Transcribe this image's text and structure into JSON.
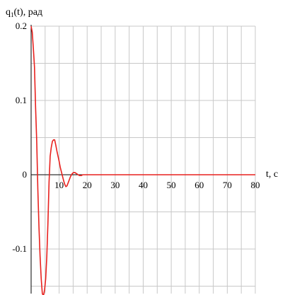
{
  "chart_data": {
    "type": "line",
    "ylabel": "q1(t), рад",
    "ylabel_main": "q",
    "ylabel_sub": "1",
    "ylabel_rest": "(t), рад",
    "xlabel": "t, c",
    "xlim": [
      0,
      80
    ],
    "ylim": [
      -0.16,
      0.2
    ],
    "grid": true,
    "x_ticks": [
      10,
      20,
      30,
      40,
      50,
      60,
      70,
      80
    ],
    "x_tick_labels": [
      "10",
      "20",
      "30",
      "40",
      "50",
      "60",
      "70",
      "80"
    ],
    "y_ticks": [
      0.2,
      0.1,
      0,
      -0.1
    ],
    "y_tick_labels": [
      "0.2",
      "0.1",
      "0",
      "-0.1"
    ],
    "colors": {
      "series": "#e8211e",
      "axis": "#000000",
      "grid": "#c8c8c8"
    },
    "series": [
      {
        "x": [
          0,
          0.4,
          0.8,
          1.2,
          1.6,
          2.0,
          2.4,
          2.8,
          3.2,
          3.6,
          4.0,
          4.4,
          4.8,
          5.2,
          5.6,
          6.0,
          6.4,
          6.8,
          7.2,
          7.6,
          8.0,
          8.4,
          8.8,
          9.2,
          9.6,
          10.0,
          10.4,
          10.8,
          11.2,
          11.6,
          12.0,
          12.4,
          12.8,
          13.2,
          13.6,
          14.0,
          14.4,
          14.8,
          15.2,
          15.6,
          16.0,
          16.4,
          16.8,
          17.2,
          17.6,
          18.0,
          18.4,
          18.8,
          19.2,
          19.6,
          20.0,
          21.0,
          22.0,
          24.0,
          30,
          40,
          50,
          60,
          70,
          80
        ],
        "y": [
          0.2,
          0.192,
          0.17,
          0.145,
          0.09,
          0.045,
          -0.02,
          -0.07,
          -0.11,
          -0.14,
          -0.16,
          -0.163,
          -0.155,
          -0.14,
          -0.11,
          -0.065,
          -0.01,
          0.025,
          0.037,
          0.045,
          0.047,
          0.047,
          0.04,
          0.032,
          0.025,
          0.018,
          0.01,
          0.004,
          -0.002,
          -0.008,
          -0.013,
          -0.016,
          -0.015,
          -0.011,
          -0.007,
          -0.003,
          0.0,
          0.002,
          0.003,
          0.003,
          0.002,
          0.001,
          0.0,
          -0.001,
          -0.001,
          -0.001,
          0.0,
          0.0,
          0.0,
          0.0,
          0.0,
          0.0,
          0.0,
          0.0,
          0.0,
          0.0,
          0.0,
          0.0,
          0.0,
          0.0
        ]
      }
    ]
  }
}
